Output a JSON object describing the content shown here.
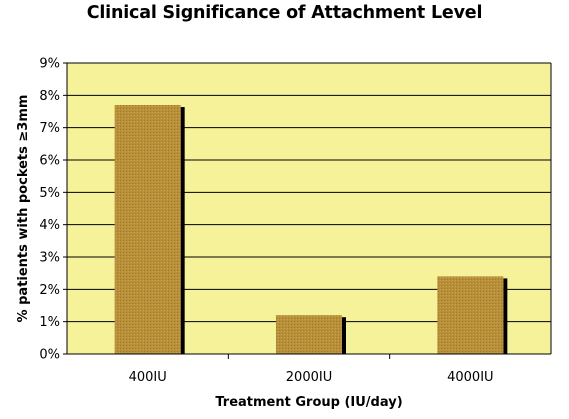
{
  "chart_data": {
    "type": "bar",
    "title": "Clinical Significance of Attachment Level",
    "xlabel": "Treatment Group (IU/day)",
    "ylabel": "% patients with pockets   ≥3mm",
    "categories": [
      "400IU",
      "2000IU",
      "4000IU"
    ],
    "series": [
      {
        "values": [
          7.7,
          1.2,
          2.4
        ]
      }
    ],
    "ylim": [
      0,
      9
    ],
    "yticks": [
      "0%",
      "1%",
      "2%",
      "3%",
      "4%",
      "5%",
      "6%",
      "7%",
      "8%",
      "9%"
    ],
    "grid": true,
    "legend": "none",
    "colors": {
      "plot_background": "#f6f29a",
      "bar_fill": "#b8903a",
      "bar_shadow": "#000000",
      "gridline": "#000000"
    }
  }
}
